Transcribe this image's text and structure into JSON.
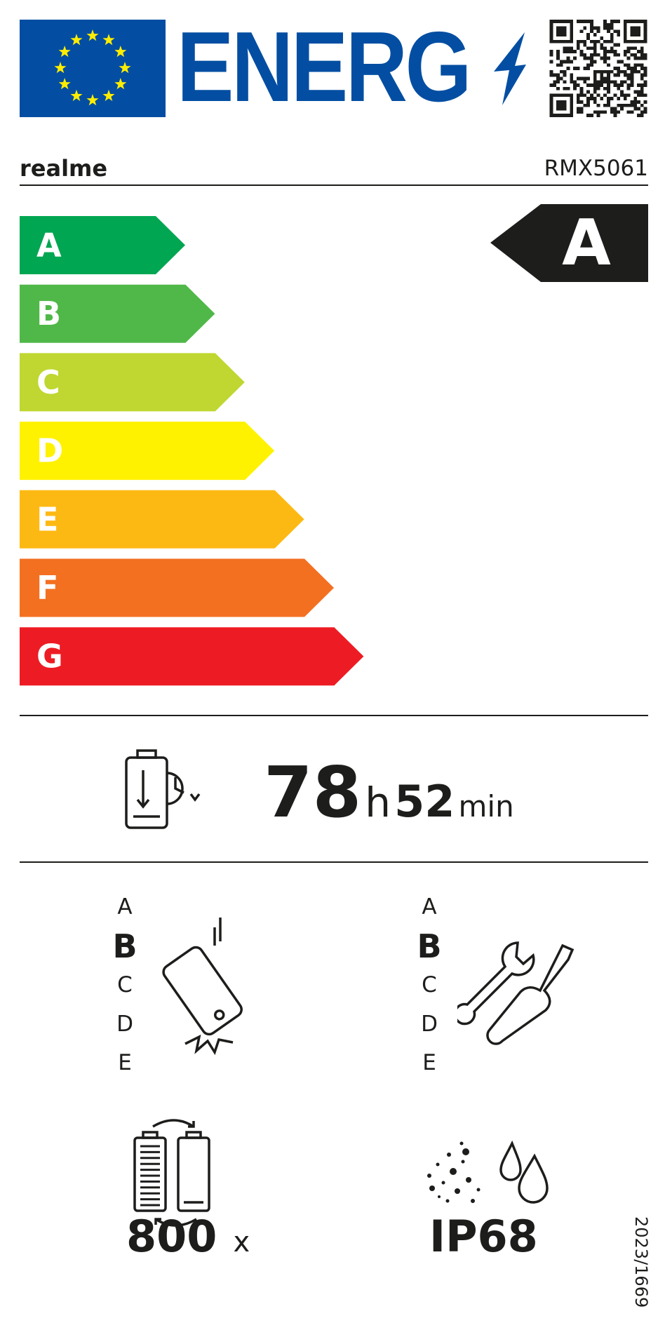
{
  "header": {
    "energy_word": "ENERG",
    "flag_color": "#034ea2",
    "star_color": "#ffed00"
  },
  "supplier": "realme",
  "model": "RMX5061",
  "scale": {
    "classes": [
      {
        "letter": "A",
        "color": "#00a651"
      },
      {
        "letter": "B",
        "color": "#50b848"
      },
      {
        "letter": "C",
        "color": "#bfd730"
      },
      {
        "letter": "D",
        "color": "#fff200"
      },
      {
        "letter": "E",
        "color": "#fdb913"
      },
      {
        "letter": "F",
        "color": "#f37021"
      },
      {
        "letter": "G",
        "color": "#ed1c24"
      }
    ],
    "rating": "A"
  },
  "endurance": {
    "hours": "78",
    "hours_unit": "h",
    "minutes": "52",
    "minutes_unit": "min",
    "icon": "battery-clock-icon"
  },
  "drop_reliability": {
    "grades": [
      "A",
      "B",
      "C",
      "D",
      "E"
    ],
    "selected": "B",
    "icon": "phone-drop-icon"
  },
  "repairability": {
    "grades": [
      "A",
      "B",
      "C",
      "D",
      "E"
    ],
    "selected": "B",
    "icon": "wrench-screwdriver-icon"
  },
  "battery_cycles": {
    "value": "800",
    "unit": "x",
    "icon": "battery-cycle-icon"
  },
  "ingress": {
    "value": "IP68",
    "icon": "dust-water-icon"
  },
  "regulation": "2023/1669"
}
